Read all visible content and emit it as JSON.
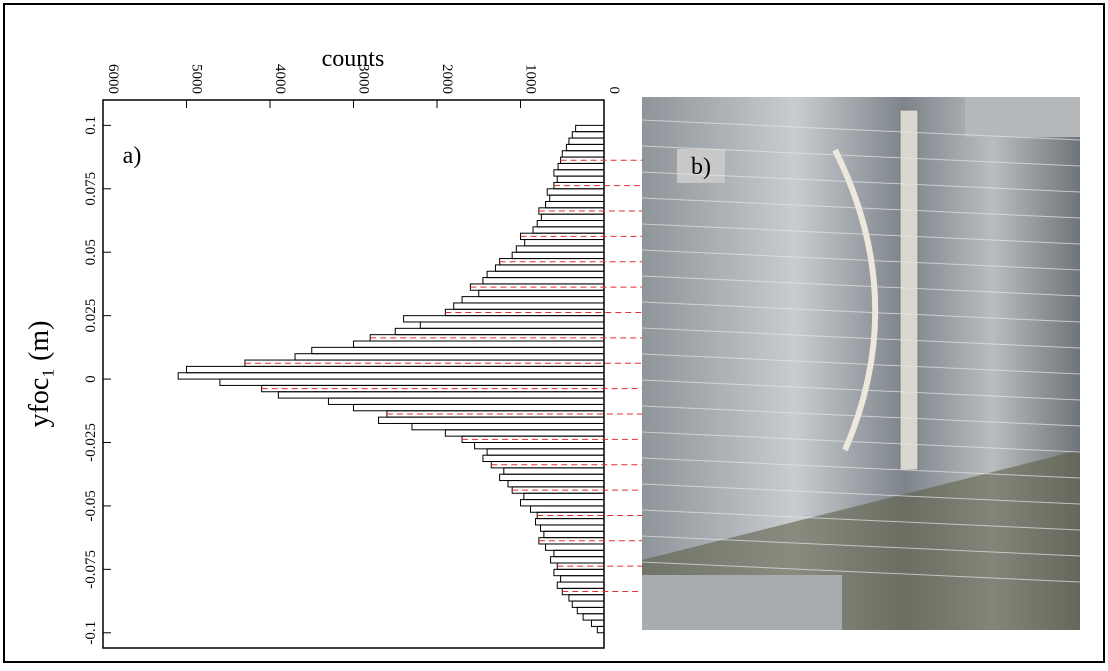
{
  "chart_data": {
    "type": "histogram",
    "orientation": "horizontal",
    "xlabel": "counts",
    "ylabel": "yfoc₁ (m)",
    "panel_a": "a)",
    "panel_b": "b)",
    "xlim": [
      6000,
      0
    ],
    "xticks": [
      6000,
      5000,
      4000,
      3000,
      2000,
      1000,
      0
    ],
    "ylim": [
      -0.106,
      0.11
    ],
    "yticks": [
      0.1,
      0.075,
      0.05,
      0.025,
      0,
      -0.025,
      -0.05,
      -0.075,
      -0.1
    ],
    "color": "#000000",
    "bins": [
      -0.1,
      -0.0975,
      -0.095,
      -0.0925,
      -0.09,
      -0.0875,
      -0.085,
      -0.0825,
      -0.08,
      -0.0775,
      -0.075,
      -0.0725,
      -0.07,
      -0.0675,
      -0.065,
      -0.0625,
      -0.06,
      -0.0575,
      -0.055,
      -0.0525,
      -0.05,
      -0.0475,
      -0.045,
      -0.0425,
      -0.04,
      -0.0375,
      -0.035,
      -0.0325,
      -0.03,
      -0.0275,
      -0.025,
      -0.0225,
      -0.02,
      -0.0175,
      -0.015,
      -0.0125,
      -0.01,
      -0.0075,
      -0.005,
      -0.0025,
      0,
      0.0025,
      0.005,
      0.0075,
      0.01,
      0.0125,
      0.015,
      0.0175,
      0.02,
      0.0225,
      0.025,
      0.0275,
      0.03,
      0.0325,
      0.035,
      0.0375,
      0.04,
      0.0425,
      0.045,
      0.0475,
      0.05,
      0.0525,
      0.055,
      0.0575,
      0.06,
      0.0625,
      0.065,
      0.0675,
      0.07,
      0.0725,
      0.075,
      0.0775,
      0.08,
      0.0825,
      0.085,
      0.0875,
      0.09,
      0.0925,
      0.095,
      0.0975,
      0.1
    ],
    "values": [
      80,
      150,
      250,
      320,
      380,
      420,
      500,
      560,
      520,
      600,
      560,
      640,
      600,
      700,
      780,
      720,
      760,
      820,
      800,
      880,
      1000,
      960,
      1100,
      1150,
      1250,
      1200,
      1350,
      1450,
      1400,
      1550,
      1700,
      1900,
      2300,
      2700,
      2600,
      3000,
      3300,
      3900,
      4100,
      4600,
      5100,
      5000,
      4300,
      3700,
      3500,
      3000,
      2800,
      2500,
      2200,
      2400,
      1900,
      1800,
      1700,
      1500,
      1600,
      1450,
      1400,
      1300,
      1250,
      1100,
      1050,
      950,
      1000,
      850,
      800,
      750,
      780,
      700,
      650,
      680,
      600,
      560,
      600,
      550,
      520,
      500,
      450,
      420,
      380,
      340
    ]
  }
}
